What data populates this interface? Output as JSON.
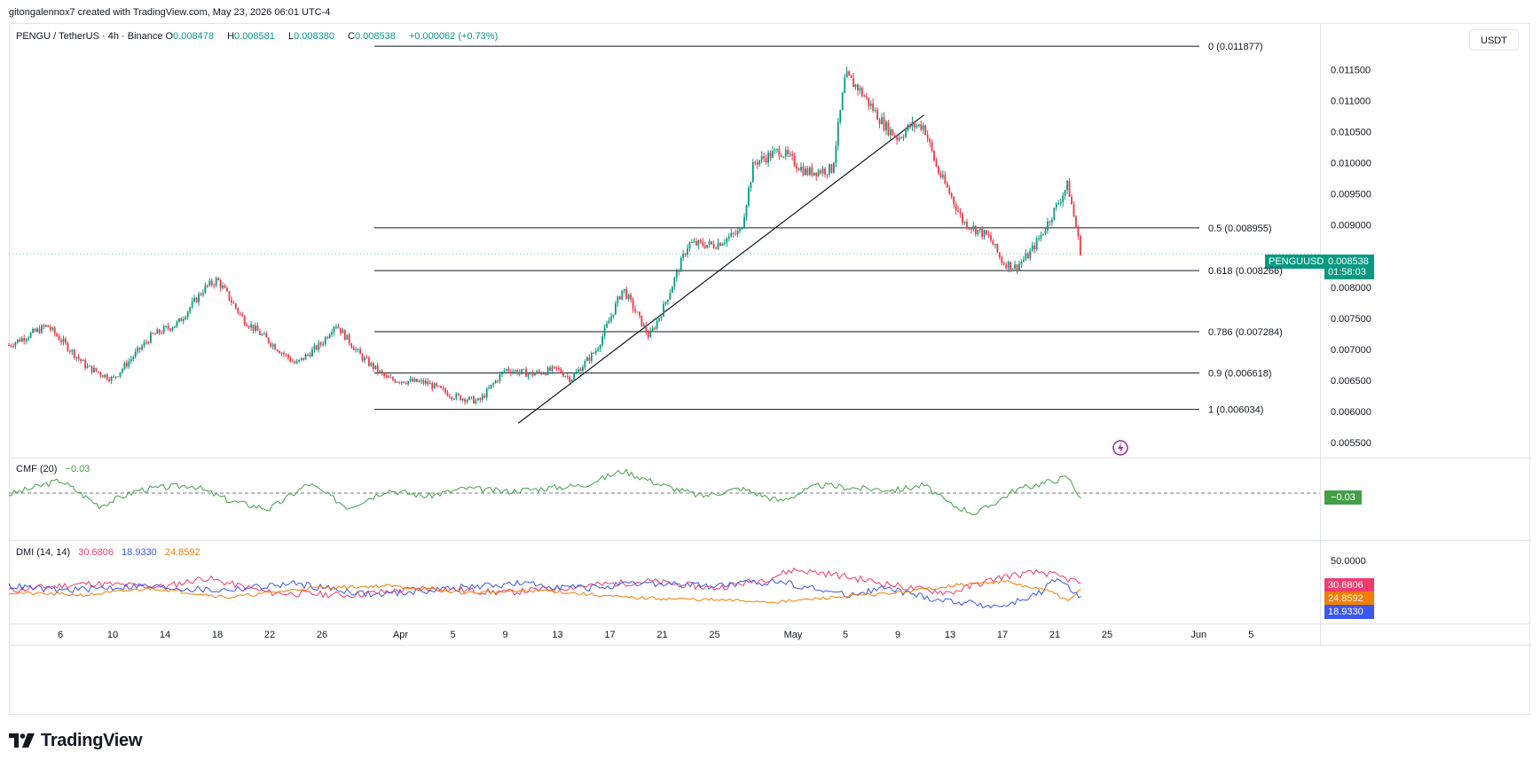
{
  "credit": "gitongalennox7 created with TradingView.com, May 23, 2026 06:01 UTC-4",
  "symbol": {
    "title": "PENGU / TetherUS · 4h · Binance",
    "open_label": "O",
    "open": "0.008478",
    "high_label": "H",
    "high": "0.008581",
    "low_label": "L",
    "low": "0.008380",
    "close_label": "C",
    "close": "0.008538",
    "change": "+0.000062 (+0.73%)"
  },
  "currency_button": "USDT",
  "price_label": {
    "ticker": "PENGUUSDT",
    "price": "0.008538",
    "countdown": "01:58:03",
    "color": "#089981"
  },
  "colors": {
    "up": "#089981",
    "down": "#f23645",
    "cmf": "#43a047",
    "di_plus": "#f23b6b",
    "di_minus": "#3a57f0",
    "adx": "#f57c00"
  },
  "logo": "TradingView",
  "icons": [
    "tradingview-logo-icon",
    "flash-icon"
  ],
  "cmf": {
    "label": "CMF (20)",
    "value": "−0.03",
    "tag": "−0.03"
  },
  "dmi": {
    "label": "DMI (14, 14)",
    "plus": "30.6806",
    "minus": "18.9330",
    "adx": "24.8592",
    "axis_label": "50.0000",
    "axis_hidden": "0.0000"
  },
  "chart_data": {
    "type": "candlestick",
    "timeframe": "4h",
    "ylim": [
      0.0054,
      0.01205
    ],
    "y_ticks": [
      "0.011500",
      "0.011000",
      "0.010500",
      "0.010000",
      "0.009500",
      "0.009000",
      "0.008000",
      "0.007500",
      "0.007000",
      "0.006500",
      "0.006000",
      "0.005500"
    ],
    "x_ticks": [
      "6",
      "10",
      "14",
      "18",
      "22",
      "26",
      "Apr",
      "5",
      "9",
      "13",
      "17",
      "21",
      "25",
      "May",
      "5",
      "9",
      "13",
      "17",
      "21",
      "25",
      "Jun",
      "5"
    ],
    "price_path": [
      [
        "2026-03-02",
        0.00706
      ],
      [
        "2026-03-05",
        0.00738
      ],
      [
        "2026-03-08",
        0.00672
      ],
      [
        "2026-03-10",
        0.00652
      ],
      [
        "2026-03-13",
        0.00722
      ],
      [
        "2026-03-15",
        0.00742
      ],
      [
        "2026-03-17",
        0.00798
      ],
      [
        "2026-03-18",
        0.00812
      ],
      [
        "2026-03-20",
        0.00748
      ],
      [
        "2026-03-22",
        0.00712
      ],
      [
        "2026-03-24",
        0.00676
      ],
      [
        "2026-03-26",
        0.0071
      ],
      [
        "2026-03-27",
        0.00742
      ],
      [
        "2026-03-29",
        0.00688
      ],
      [
        "2026-03-31",
        0.00652
      ],
      [
        "2026-04-03",
        0.00646
      ],
      [
        "2026-04-05",
        0.00625
      ],
      [
        "2026-04-07",
        0.00616
      ],
      [
        "2026-04-09",
        0.00668
      ],
      [
        "2026-04-11",
        0.0066
      ],
      [
        "2026-04-13",
        0.00668
      ],
      [
        "2026-04-14",
        0.00652
      ],
      [
        "2026-04-16",
        0.007
      ],
      [
        "2026-04-18",
        0.00798
      ],
      [
        "2026-04-20",
        0.0072
      ],
      [
        "2026-04-21",
        0.00762
      ],
      [
        "2026-04-23",
        0.0087
      ],
      [
        "2026-04-25",
        0.00868
      ],
      [
        "2026-04-27",
        0.0089
      ],
      [
        "2026-04-28",
        0.01
      ],
      [
        "2026-04-30",
        0.0102
      ],
      [
        "2026-05-02",
        0.00985
      ],
      [
        "2026-05-04",
        0.0099
      ],
      [
        "2026-05-05",
        0.0114
      ],
      [
        "2026-05-06",
        0.0112
      ],
      [
        "2026-05-08",
        0.0106
      ],
      [
        "2026-05-09",
        0.0104
      ],
      [
        "2026-05-10",
        0.0106
      ],
      [
        "2026-05-11",
        0.0106
      ],
      [
        "2026-05-12",
        0.0099
      ],
      [
        "2026-05-13",
        0.0095
      ],
      [
        "2026-05-14",
        0.00905
      ],
      [
        "2026-05-16",
        0.0088
      ],
      [
        "2026-05-17",
        0.0084
      ],
      [
        "2026-05-18",
        0.00832
      ],
      [
        "2026-05-19",
        0.00852
      ],
      [
        "2026-05-20",
        0.00885
      ],
      [
        "2026-05-21",
        0.00925
      ],
      [
        "2026-05-22",
        0.00965
      ],
      [
        "2026-05-23",
        0.00854
      ]
    ],
    "fib_levels": [
      {
        "label": "0 (0.011877)",
        "value": 0.011877
      },
      {
        "label": "0.5 (0.008955)",
        "value": 0.008955
      },
      {
        "label": "0.618 (0.008266)",
        "value": 0.008266
      },
      {
        "label": "0.786 (0.007284)",
        "value": 0.007284
      },
      {
        "label": "0.9 (0.006618)",
        "value": 0.006618
      },
      {
        "label": "1 (0.006034)",
        "value": 0.006034
      }
    ],
    "fib_start": "2026-03-30",
    "trendline": [
      [
        "2026-04-10",
        0.00581
      ],
      [
        "2026-05-11",
        0.01077
      ]
    ],
    "cmf_path": [
      [
        "2026-03-02",
        -0.01
      ],
      [
        "2026-03-06",
        0.08
      ],
      [
        "2026-03-09",
        -0.08
      ],
      [
        "2026-03-12",
        0.02
      ],
      [
        "2026-03-16",
        0.05
      ],
      [
        "2026-03-19",
        -0.05
      ],
      [
        "2026-03-22",
        -0.1
      ],
      [
        "2026-03-25",
        0.06
      ],
      [
        "2026-03-28",
        -0.09
      ],
      [
        "2026-03-31",
        0.02
      ],
      [
        "2026-04-03",
        -0.02
      ],
      [
        "2026-04-06",
        0.03
      ],
      [
        "2026-04-09",
        0.01
      ],
      [
        "2026-04-12",
        0.03
      ],
      [
        "2026-04-15",
        0.05
      ],
      [
        "2026-04-18",
        0.14
      ],
      [
        "2026-04-21",
        0.05
      ],
      [
        "2026-04-24",
        -0.02
      ],
      [
        "2026-04-27",
        0.03
      ],
      [
        "2026-04-30",
        -0.05
      ],
      [
        "2026-05-03",
        0.05
      ],
      [
        "2026-05-06",
        0.03
      ],
      [
        "2026-05-09",
        0.02
      ],
      [
        "2026-05-11",
        0.05
      ],
      [
        "2026-05-13",
        -0.07
      ],
      [
        "2026-05-15",
        -0.13
      ],
      [
        "2026-05-18",
        0.02
      ],
      [
        "2026-05-20",
        0.06
      ],
      [
        "2026-05-22",
        0.1
      ],
      [
        "2026-05-23",
        -0.03
      ]
    ],
    "dmi_series": [
      {
        "name": "+DI",
        "path": [
          [
            "2026-03-02",
            24
          ],
          [
            "2026-03-08",
            30
          ],
          [
            "2026-03-14",
            27
          ],
          [
            "2026-03-17",
            35
          ],
          [
            "2026-03-22",
            22
          ],
          [
            "2026-03-28",
            20
          ],
          [
            "2026-04-03",
            26
          ],
          [
            "2026-04-09",
            22
          ],
          [
            "2026-04-15",
            28
          ],
          [
            "2026-04-20",
            32
          ],
          [
            "2026-04-25",
            26
          ],
          [
            "2026-04-29",
            34
          ],
          [
            "2026-05-01",
            42
          ],
          [
            "2026-05-04",
            38
          ],
          [
            "2026-05-07",
            32
          ],
          [
            "2026-05-10",
            26
          ],
          [
            "2026-05-13",
            22
          ],
          [
            "2026-05-17",
            36
          ],
          [
            "2026-05-20",
            40
          ],
          [
            "2026-05-23",
            30.68
          ]
        ]
      },
      {
        "name": "−DI",
        "path": [
          [
            "2026-03-02",
            28
          ],
          [
            "2026-03-06",
            24
          ],
          [
            "2026-03-12",
            28
          ],
          [
            "2026-03-18",
            24
          ],
          [
            "2026-03-24",
            30
          ],
          [
            "2026-03-30",
            20
          ],
          [
            "2026-04-05",
            26
          ],
          [
            "2026-04-10",
            30
          ],
          [
            "2026-04-15",
            26
          ],
          [
            "2026-04-20",
            30
          ],
          [
            "2026-04-25",
            28
          ],
          [
            "2026-04-30",
            32
          ],
          [
            "2026-05-05",
            20
          ],
          [
            "2026-05-08",
            26
          ],
          [
            "2026-05-12",
            16
          ],
          [
            "2026-05-17",
            10
          ],
          [
            "2026-05-20",
            22
          ],
          [
            "2026-05-21",
            34
          ],
          [
            "2026-05-23",
            18.93
          ]
        ]
      },
      {
        "name": "ADX",
        "path": [
          [
            "2026-03-02",
            22
          ],
          [
            "2026-03-08",
            20
          ],
          [
            "2026-03-13",
            26
          ],
          [
            "2026-03-19",
            18
          ],
          [
            "2026-03-25",
            26
          ],
          [
            "2026-03-31",
            28
          ],
          [
            "2026-04-06",
            22
          ],
          [
            "2026-04-12",
            24
          ],
          [
            "2026-04-18",
            18
          ],
          [
            "2026-04-24",
            16
          ],
          [
            "2026-04-30",
            14
          ],
          [
            "2026-05-04",
            18
          ],
          [
            "2026-05-09",
            22
          ],
          [
            "2026-05-13",
            28
          ],
          [
            "2026-05-17",
            32
          ],
          [
            "2026-05-21",
            22
          ],
          [
            "2026-05-22",
            14
          ],
          [
            "2026-05-23",
            24.86
          ]
        ]
      }
    ]
  }
}
